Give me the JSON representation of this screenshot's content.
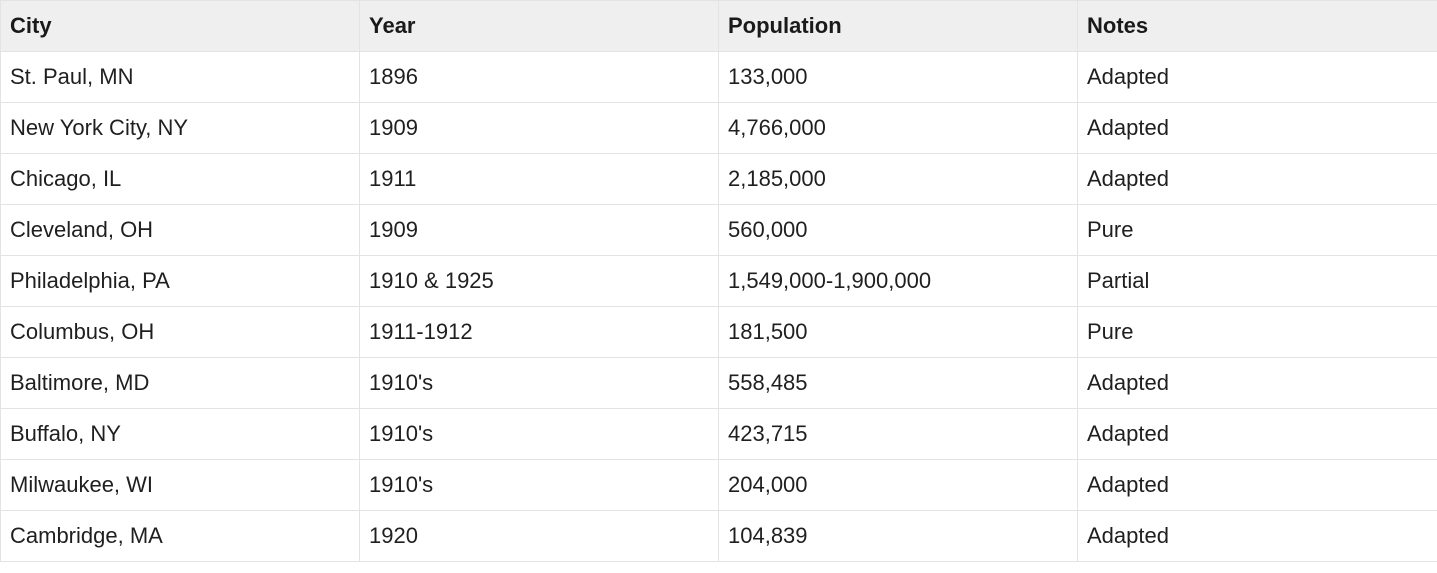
{
  "table": {
    "headers": [
      "City",
      "Year",
      "Population",
      "Notes"
    ],
    "rows": [
      [
        "St. Paul, MN",
        "1896",
        "133,000",
        "Adapted"
      ],
      [
        "New York City, NY",
        "1909",
        "4,766,000",
        "Adapted"
      ],
      [
        "Chicago, IL",
        "1911",
        "2,185,000",
        "Adapted"
      ],
      [
        "Cleveland, OH",
        "1909",
        "560,000",
        "Pure"
      ],
      [
        "Philadelphia, PA",
        "1910 & 1925",
        "1,549,000-1,900,000",
        "Partial"
      ],
      [
        "Columbus, OH",
        "1911-1912",
        "181,500",
        "Pure"
      ],
      [
        "Baltimore, MD",
        "1910's",
        "558,485",
        "Adapted"
      ],
      [
        "Buffalo, NY",
        "1910's",
        "423,715",
        "Adapted"
      ],
      [
        "Milwaukee, WI",
        "1910's",
        "204,000",
        "Adapted"
      ],
      [
        "Cambridge, MA",
        "1920",
        "104,839",
        "Adapted"
      ]
    ]
  }
}
